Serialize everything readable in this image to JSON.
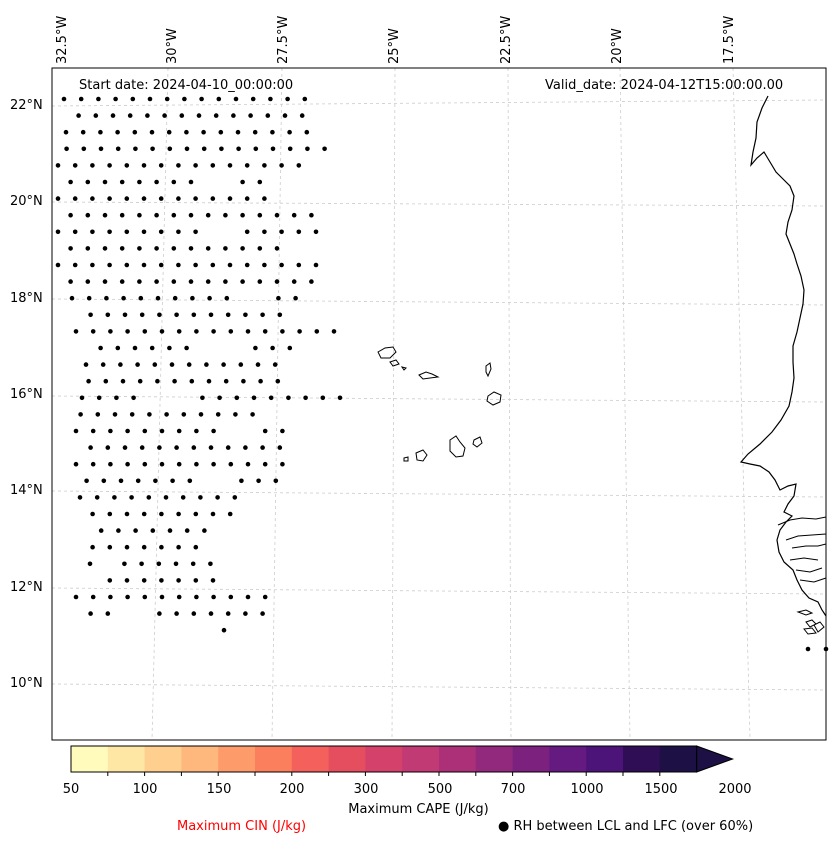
{
  "map": {
    "start_date": "Start date: 2024-04-10_00:00:00",
    "valid_date": "Valid_date: 2024-04-12T15:00:00.00",
    "lon_labels": [
      "32.5°W",
      "30°W",
      "27.5°W",
      "25°W",
      "22.5°W",
      "20°W",
      "17.5°W"
    ],
    "lat_labels": [
      "22°N",
      "20°N",
      "18°N",
      "16°N",
      "14°N",
      "12°N",
      "10°N"
    ],
    "colors": {
      "frame": "#000000",
      "gridline": "#cccccc",
      "coastline": "#000000",
      "dot": "#000000",
      "cin_label": "#ff0000"
    }
  },
  "colorbar": {
    "title": "Maximum CAPE (J/kg)",
    "ticks": [
      "50",
      "100",
      "150",
      "200",
      "300",
      "500",
      "700",
      "1000",
      "1500",
      "2000"
    ],
    "colors": [
      "#fffbbd",
      "#fee6a5",
      "#fecf8f",
      "#feb77d",
      "#fd9c6a",
      "#fb7f5c",
      "#f4615c",
      "#e54e5f",
      "#d4426b",
      "#c13a73",
      "#ab3078",
      "#93297c",
      "#7c217e",
      "#641a80",
      "#4c1479",
      "#2f0e56",
      "#1c1044"
    ]
  },
  "legend": {
    "cin_label": "Maximum CIN (J/kg)",
    "rh_label": "RH between LCL and LFC (over 60%)",
    "rh_marker": "●"
  }
}
